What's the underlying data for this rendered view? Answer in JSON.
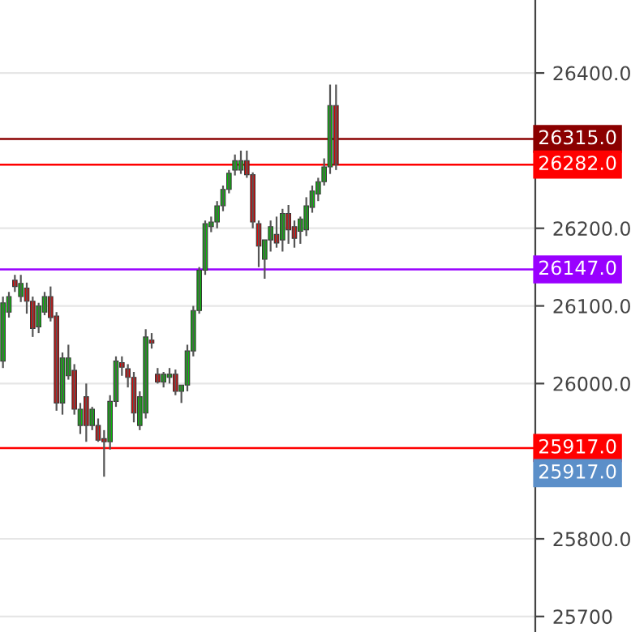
{
  "chart_data": {
    "type": "candlestick",
    "categories": [
      null,
      null,
      null,
      null,
      null,
      null,
      null,
      null,
      null,
      null,
      null,
      null,
      null,
      null,
      null,
      null,
      null,
      null,
      null,
      null,
      null,
      null,
      null,
      null,
      null,
      null,
      null,
      null,
      null,
      null,
      null,
      null,
      null,
      null,
      null,
      null,
      null,
      null,
      null,
      null,
      null,
      null,
      null,
      null,
      null,
      null,
      null,
      null,
      null,
      null,
      null,
      null,
      null,
      null,
      null,
      null,
      null,
      null,
      null,
      null,
      null,
      null,
      null,
      null,
      null,
      null,
      null,
      null,
      null,
      null,
      null,
      null,
      null,
      null,
      null,
      null,
      null,
      null,
      null,
      null,
      null,
      null,
      null,
      null,
      null,
      null,
      null,
      null,
      null,
      null
    ],
    "ohlc": [
      [
        26029,
        26112,
        26020,
        26104
      ],
      [
        26092,
        26118,
        26085,
        26112
      ],
      [
        26133,
        26140,
        26118,
        26125
      ],
      [
        26112,
        26140,
        26105,
        26129
      ],
      [
        26123,
        26130,
        26090,
        26106
      ],
      [
        26106,
        26112,
        26060,
        26071
      ],
      [
        26073,
        26104,
        26065,
        26100
      ],
      [
        26092,
        26118,
        26088,
        26112
      ],
      [
        26112,
        26125,
        26080,
        26085
      ],
      [
        26087,
        26092,
        25965,
        25975
      ],
      [
        25975,
        26040,
        25960,
        26033
      ],
      [
        26010,
        26050,
        26005,
        26033
      ],
      [
        26017,
        26025,
        25960,
        25967
      ],
      [
        25946,
        25975,
        25935,
        25967
      ],
      [
        25983,
        26000,
        25925,
        25946
      ],
      [
        25946,
        25970,
        25940,
        25967
      ],
      [
        25946,
        25955,
        25925,
        25927
      ],
      [
        25929,
        25940,
        25880,
        25925
      ],
      [
        25925,
        25985,
        25915,
        25977
      ],
      [
        25977,
        26035,
        25970,
        26029
      ],
      [
        26027,
        26035,
        26010,
        26021
      ],
      [
        26019,
        26025,
        25995,
        26008
      ],
      [
        26008,
        26015,
        25950,
        25962
      ],
      [
        25946,
        25990,
        25940,
        25983
      ],
      [
        25962,
        26070,
        25955,
        26060
      ],
      [
        26056,
        26065,
        26045,
        26052
      ],
      [
        26012,
        26020,
        26000,
        26002
      ],
      [
        26002,
        26015,
        25995,
        26012
      ],
      [
        26008,
        26020,
        26000,
        26012
      ],
      [
        26012,
        26018,
        25985,
        25990
      ],
      [
        25990,
        25998,
        25975,
        25998
      ],
      [
        25998,
        26050,
        25990,
        26042
      ],
      [
        26042,
        26100,
        26035,
        26094
      ],
      [
        26094,
        26150,
        26090,
        26146
      ],
      [
        26146,
        26210,
        26140,
        26206
      ],
      [
        26202,
        26215,
        26195,
        26208
      ],
      [
        26208,
        26235,
        26200,
        26229
      ],
      [
        26229,
        26255,
        26222,
        26250
      ],
      [
        26250,
        26275,
        26245,
        26271
      ],
      [
        26275,
        26295,
        26268,
        26287
      ],
      [
        26275,
        26300,
        26270,
        26287
      ],
      [
        26287,
        26300,
        26265,
        26269
      ],
      [
        26269,
        26272,
        26200,
        26208
      ],
      [
        26206,
        26210,
        26150,
        26177
      ],
      [
        26160,
        26185,
        26135,
        26185
      ],
      [
        26185,
        26210,
        26170,
        26202
      ],
      [
        26192,
        26215,
        26175,
        26181
      ],
      [
        26185,
        26225,
        26170,
        26219
      ],
      [
        26219,
        26230,
        26180,
        26198
      ],
      [
        26202,
        26210,
        26175,
        26187
      ],
      [
        26196,
        26215,
        26180,
        26212
      ],
      [
        26198,
        26240,
        26190,
        26229
      ],
      [
        26227,
        26255,
        26220,
        26248
      ],
      [
        26244,
        26265,
        26235,
        26260
      ],
      [
        26260,
        26290,
        26255,
        26279
      ],
      [
        26279,
        26385,
        26270,
        26358
      ],
      [
        26358,
        26385,
        26275,
        26282
      ],
      null,
      null,
      null,
      null,
      null,
      null,
      null,
      null,
      null,
      null,
      null,
      null,
      null,
      null,
      null,
      null,
      null,
      null,
      null,
      null,
      null,
      null,
      null,
      null,
      null,
      null,
      null,
      null,
      null,
      null,
      null,
      null,
      null
    ],
    "ylim": [
      25680,
      26494
    ],
    "yticks": [
      25700,
      {
        "value": 25800,
        "label": "25800.0"
      },
      {
        "value": 26000,
        "label": "26000.0"
      },
      {
        "value": 26100,
        "label": "26100.0"
      },
      {
        "value": 26200,
        "label": "26200.0"
      },
      {
        "value": 26400,
        "label": "26400.0"
      }
    ],
    "ref_lines": [
      {
        "axis": "y",
        "value": 26315,
        "label": "26315.0",
        "color": "#8b0000"
      },
      {
        "axis": "y",
        "value": 26282,
        "label": "26282.0",
        "color": "#ff0000"
      },
      {
        "axis": "y",
        "value": 26147,
        "label": "26147.0",
        "color": "#9900ff"
      },
      {
        "axis": "y",
        "value": 25917,
        "label": "25917.0",
        "color": "#ff0000"
      }
    ],
    "annotations": [
      "25917.0"
    ],
    "grid": "y"
  }
}
